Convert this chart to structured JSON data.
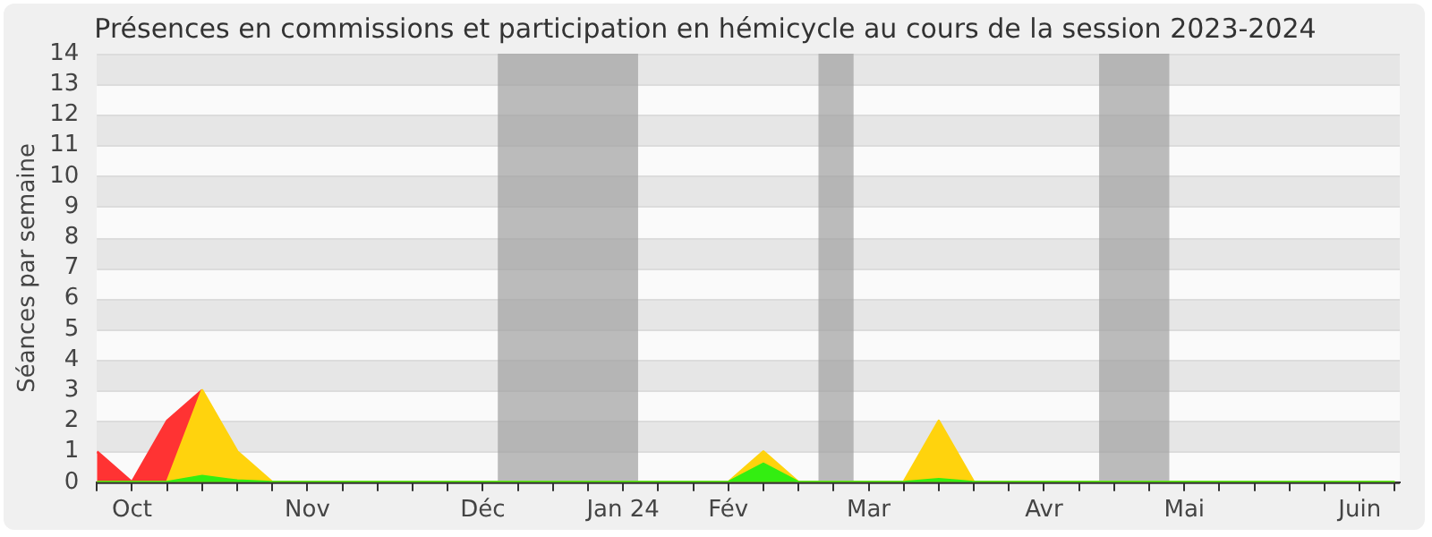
{
  "chart_data": {
    "type": "area",
    "title": "Présences en commissions et participation en hémicycle au cours de la session 2023-2024",
    "ylabel": "Séances par semaine",
    "x": [
      "2023-09-29",
      "2023-10-06",
      "2023-10-13",
      "2023-10-20",
      "2023-10-27",
      "2023-11-03",
      "2023-11-10",
      "2023-11-17",
      "2023-11-24",
      "2023-12-01",
      "2023-12-08",
      "2023-12-15",
      "2023-12-22",
      "2023-12-29",
      "2024-01-05",
      "2024-01-12",
      "2024-01-19",
      "2024-01-26",
      "2024-02-02",
      "2024-02-09",
      "2024-02-16",
      "2024-02-23",
      "2024-03-01",
      "2024-03-08",
      "2024-03-15",
      "2024-03-22",
      "2024-03-29",
      "2024-04-05",
      "2024-04-12",
      "2024-04-19",
      "2024-04-26",
      "2024-05-03",
      "2024-05-10",
      "2024-05-17",
      "2024-05-24",
      "2024-05-31",
      "2024-06-07",
      "2024-06-14"
    ],
    "series": [
      {
        "color": "#33ee11",
        "values": [
          0,
          0,
          0,
          0.2,
          0.05,
          0,
          0,
          0,
          0,
          0,
          0,
          0,
          0,
          0,
          0,
          0,
          0,
          0,
          0,
          0.6,
          0,
          0,
          0,
          0,
          0.1,
          0,
          0,
          0,
          0,
          0,
          0,
          0,
          0,
          0,
          0,
          0,
          0,
          0
        ]
      },
      {
        "color": "#ffd30d",
        "values": [
          0,
          0,
          0,
          3,
          1,
          0,
          0,
          0,
          0,
          0,
          0,
          0,
          0,
          0,
          0,
          0,
          0,
          0,
          0,
          1,
          0,
          0,
          0,
          0,
          2,
          0,
          0,
          0,
          0,
          0,
          0,
          0,
          0,
          0,
          0,
          0,
          0,
          0
        ]
      },
      {
        "color": "#ff3333",
        "values": [
          1,
          0,
          2,
          3,
          null,
          null,
          null,
          null,
          null,
          null,
          null,
          null,
          null,
          null,
          null,
          null,
          null,
          null,
          null,
          null,
          null,
          null,
          null,
          null,
          null,
          null,
          null,
          null,
          null,
          null,
          null,
          null,
          null,
          null,
          null,
          null,
          null,
          null
        ]
      }
    ],
    "xlim": [
      "2023-09-29",
      "2024-06-15"
    ],
    "xticks": [
      {
        "value": "2023-09-29",
        "label": null
      },
      {
        "value": "2023-10-06",
        "label": "Oct"
      },
      {
        "value": "2023-10-13",
        "label": null
      },
      {
        "value": "2023-10-20",
        "label": null
      },
      {
        "value": "2023-10-27",
        "label": null
      },
      {
        "value": "2023-11-03",
        "label": null
      },
      {
        "value": "2023-11-10",
        "label": "Nov"
      },
      {
        "value": "2023-11-17",
        "label": null
      },
      {
        "value": "2023-11-24",
        "label": null
      },
      {
        "value": "2023-12-01",
        "label": null
      },
      {
        "value": "2023-12-08",
        "label": null
      },
      {
        "value": "2023-12-15",
        "label": "Déc"
      },
      {
        "value": "2023-12-22",
        "label": null
      },
      {
        "value": "2023-12-29",
        "label": null
      },
      {
        "value": "2024-01-05",
        "label": null
      },
      {
        "value": "2024-01-12",
        "label": "Jan 24"
      },
      {
        "value": "2024-01-19",
        "label": null
      },
      {
        "value": "2024-01-26",
        "label": null
      },
      {
        "value": "2024-02-02",
        "label": "Fév"
      },
      {
        "value": "2024-02-09",
        "label": null
      },
      {
        "value": "2024-02-16",
        "label": null
      },
      {
        "value": "2024-02-23",
        "label": null
      },
      {
        "value": "2024-03-01",
        "label": "Mar"
      },
      {
        "value": "2024-03-08",
        "label": null
      },
      {
        "value": "2024-03-15",
        "label": null
      },
      {
        "value": "2024-03-22",
        "label": null
      },
      {
        "value": "2024-03-29",
        "label": null
      },
      {
        "value": "2024-04-05",
        "label": "Avr"
      },
      {
        "value": "2024-04-12",
        "label": null
      },
      {
        "value": "2024-04-19",
        "label": null
      },
      {
        "value": "2024-04-26",
        "label": null
      },
      {
        "value": "2024-05-03",
        "label": "Mai"
      },
      {
        "value": "2024-05-10",
        "label": null
      },
      {
        "value": "2024-05-17",
        "label": null
      },
      {
        "value": "2024-05-24",
        "label": null
      },
      {
        "value": "2024-05-31",
        "label": null
      },
      {
        "value": "2024-06-07",
        "label": "Juin"
      },
      {
        "value": "2024-06-14",
        "label": null
      }
    ],
    "ylim": [
      0,
      14
    ],
    "yticks": [
      0,
      1,
      2,
      3,
      4,
      5,
      6,
      7,
      8,
      9,
      10,
      11,
      12,
      13,
      14
    ],
    "grid": "y",
    "marker": "none",
    "bands": [
      {
        "axis": "x",
        "from": "2023-12-18",
        "to": "2024-01-15",
        "color": "#a0a0a0"
      },
      {
        "axis": "x",
        "from": "2024-02-20",
        "to": "2024-02-27",
        "color": "#a0a0a0"
      },
      {
        "axis": "x",
        "from": "2024-04-16",
        "to": "2024-04-30",
        "color": "#a0a0a0"
      }
    ]
  }
}
